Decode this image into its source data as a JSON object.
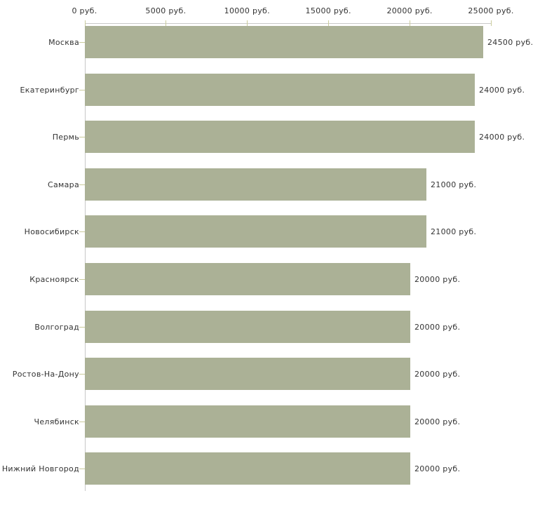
{
  "chart_data": {
    "type": "bar",
    "orientation": "horizontal",
    "title": "",
    "categories": [
      "Москва",
      "Екатеринбург",
      "Пермь",
      "Самара",
      "Новосибирск",
      "Красноярск",
      "Волгоград",
      "Ростов-На-Дону",
      "Челябинск",
      "Нижний Новгород"
    ],
    "values": [
      24500,
      24000,
      24000,
      21000,
      21000,
      20000,
      20000,
      20000,
      20000,
      20000
    ],
    "value_labels": [
      "24500 руб.",
      "24000 руб.",
      "24000 руб.",
      "21000 руб.",
      "21000 руб.",
      "20000 руб.",
      "20000 руб.",
      "20000 руб.",
      "20000 руб.",
      "20000 руб."
    ],
    "unit": "руб.",
    "x_ticks": [
      {
        "value": 0,
        "label": "0 руб."
      },
      {
        "value": 5000,
        "label": "5000 руб."
      },
      {
        "value": 10000,
        "label": "10000 руб."
      },
      {
        "value": 15000,
        "label": "15000 руб."
      },
      {
        "value": 20000,
        "label": "20000 руб."
      },
      {
        "value": 25000,
        "label": "25000 руб."
      }
    ],
    "xlim": [
      0,
      25000
    ],
    "legend": null,
    "grid": false,
    "colors": {
      "bar": "#abb196",
      "axis": "#c8c8c8",
      "tick": "#cacb9b",
      "text": "#333333",
      "background": "#ffffff"
    }
  }
}
